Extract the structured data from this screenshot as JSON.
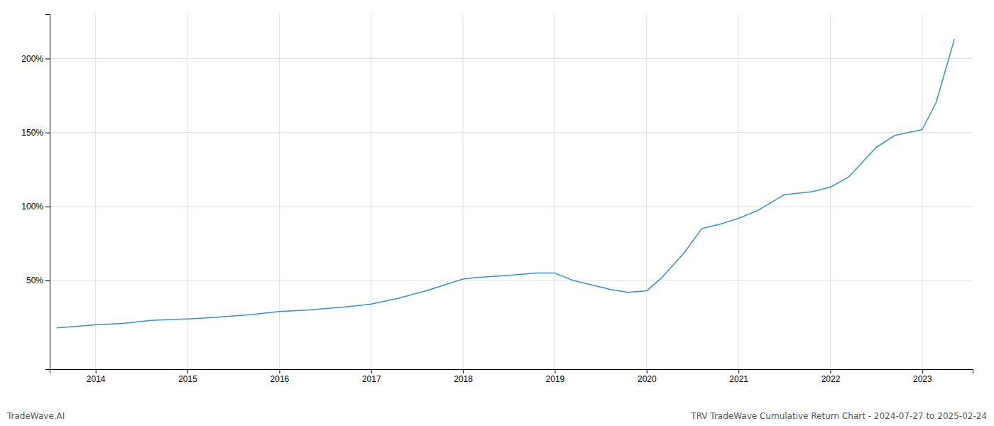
{
  "chart_data": {
    "type": "line",
    "title": "TRV TradeWave Cumulative Return Chart - 2024-07-27 to 2025-02-24",
    "annotations": [
      "TradeWave.AI"
    ],
    "color": "#3a8fc7",
    "grid": true,
    "x": [
      2013.58,
      2014.0,
      2014.3,
      2014.6,
      2015.0,
      2015.3,
      2015.7,
      2016.0,
      2016.3,
      2016.7,
      2017.0,
      2017.3,
      2017.6,
      2018.0,
      2018.15,
      2018.4,
      2018.6,
      2018.8,
      2019.0,
      2019.2,
      2019.4,
      2019.6,
      2019.8,
      2020.0,
      2020.15,
      2020.4,
      2020.6,
      2020.8,
      2021.0,
      2021.2,
      2021.5,
      2021.8,
      2022.0,
      2022.2,
      2022.5,
      2022.7,
      2023.0,
      2023.15,
      2023.35
    ],
    "values": [
      18,
      20,
      21,
      23,
      24,
      25,
      27,
      29,
      30,
      32,
      34,
      38,
      43,
      51,
      52,
      53,
      54,
      55,
      55,
      50,
      47,
      44,
      42,
      43,
      51,
      68,
      85,
      88,
      92,
      97,
      108,
      110,
      113,
      120,
      140,
      148,
      152,
      170,
      213
    ],
    "xlim": [
      2013.5,
      2023.55
    ],
    "xticks": [
      2014,
      2015,
      2016,
      2017,
      2018,
      2019,
      2020,
      2021,
      2022,
      2023
    ],
    "ylim": [
      -10,
      230
    ],
    "yticks": [
      {
        "value": 50,
        "label": "50%"
      },
      {
        "value": 100,
        "label": "100%"
      },
      {
        "value": 150,
        "label": "150%"
      },
      {
        "value": 200,
        "label": "200%"
      }
    ]
  }
}
